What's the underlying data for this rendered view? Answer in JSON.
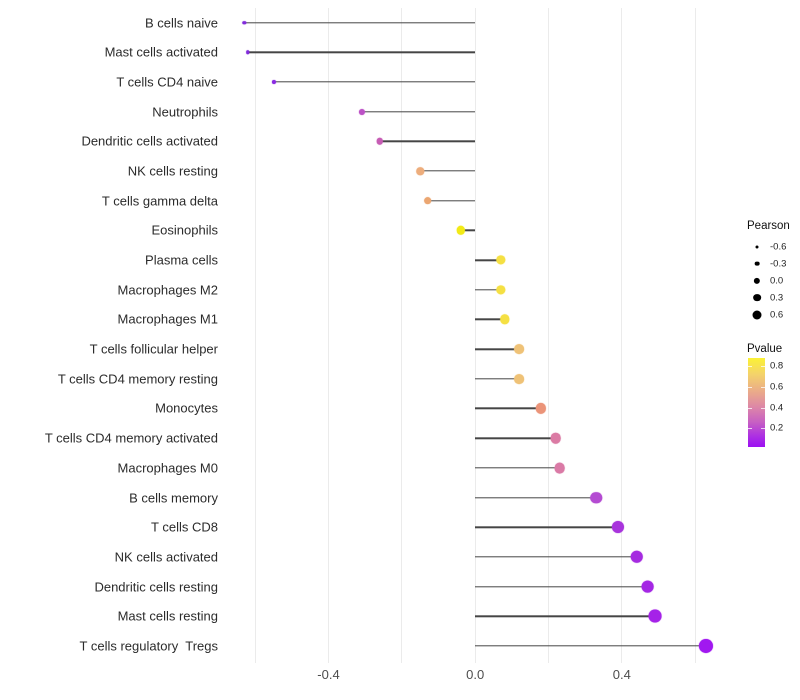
{
  "figure": {
    "background": "#ffffff",
    "gridline_color": "#ebebeb",
    "stem_color": "#454545",
    "axis_text_color": "#4d4d4d"
  },
  "chart_data": {
    "type": "scatter",
    "subtype": "lollipop",
    "title": "",
    "xlabel": "",
    "ylabel": "",
    "xlim": [
      -0.685,
      0.695
    ],
    "grid": true,
    "gridline_values": [
      -0.6,
      -0.4,
      -0.2,
      0.0,
      0.2,
      0.4,
      0.6
    ],
    "x_ticks": [
      {
        "label": "-0.4",
        "value": -0.4
      },
      {
        "label": "0.0",
        "value": 0.0
      },
      {
        "label": "0.4",
        "value": 0.4
      }
    ],
    "points": [
      {
        "label": "B cells naive",
        "pearson": -0.63,
        "pvalue": 0.1,
        "color": "#812bdb"
      },
      {
        "label": "Mast cells activated",
        "pearson": -0.62,
        "pvalue": 0.1,
        "color": "#812bdb"
      },
      {
        "label": "T cells CD4 naive",
        "pearson": -0.55,
        "pvalue": 0.13,
        "color": "#8a2be2"
      },
      {
        "label": "Neutrophils",
        "pearson": -0.31,
        "pvalue": 0.3,
        "color": "#bc52c6"
      },
      {
        "label": "Dendritic cells activated",
        "pearson": -0.26,
        "pvalue": 0.33,
        "color": "#c65cb4"
      },
      {
        "label": "NK cells resting",
        "pearson": -0.15,
        "pvalue": 0.6,
        "color": "#edad7c"
      },
      {
        "label": "T cells gamma delta",
        "pearson": -0.13,
        "pvalue": 0.58,
        "color": "#eba671"
      },
      {
        "label": "Eosinophils",
        "pearson": -0.04,
        "pvalue": 0.85,
        "color": "#f2ea16"
      },
      {
        "label": "Plasma cells",
        "pearson": 0.07,
        "pvalue": 0.78,
        "color": "#f5e043"
      },
      {
        "label": "Macrophages M2",
        "pearson": 0.07,
        "pvalue": 0.78,
        "color": "#f5e043"
      },
      {
        "label": "Macrophages M1",
        "pearson": 0.08,
        "pvalue": 0.78,
        "color": "#f5e043"
      },
      {
        "label": "T cells follicular helper",
        "pearson": 0.12,
        "pvalue": 0.66,
        "color": "#efc277"
      },
      {
        "label": "T cells CD4 memory resting",
        "pearson": 0.12,
        "pvalue": 0.66,
        "color": "#efc277"
      },
      {
        "label": "Monocytes",
        "pearson": 0.18,
        "pvalue": 0.52,
        "color": "#eb9479"
      },
      {
        "label": "T cells CD4 memory activated",
        "pearson": 0.22,
        "pvalue": 0.44,
        "color": "#db7ba4"
      },
      {
        "label": "Macrophages M0",
        "pearson": 0.23,
        "pvalue": 0.43,
        "color": "#da7aa6"
      },
      {
        "label": "B cells memory",
        "pearson": 0.33,
        "pvalue": 0.22,
        "color": "#b44bd2"
      },
      {
        "label": "T cells CD8",
        "pearson": 0.39,
        "pvalue": 0.16,
        "color": "#a834dc"
      },
      {
        "label": "NK cells activated",
        "pearson": 0.44,
        "pvalue": 0.13,
        "color": "#a52be0"
      },
      {
        "label": "Dendritic cells resting",
        "pearson": 0.47,
        "pvalue": 0.11,
        "color": "#a427e4"
      },
      {
        "label": "Mast cells resting",
        "pearson": 0.49,
        "pvalue": 0.1,
        "color": "#a522e8"
      },
      {
        "label": "T cells regulatory  Tregs",
        "pearson": 0.63,
        "pvalue": 0.05,
        "color": "#a118f0"
      }
    ],
    "legend_size": {
      "title": "Pearson",
      "entries": [
        {
          "label": "-0.6",
          "value": -0.6
        },
        {
          "label": "-0.3",
          "value": -0.3
        },
        {
          "label": "0.0",
          "value": 0.0
        },
        {
          "label": "0.3",
          "value": 0.3
        },
        {
          "label": "0.6",
          "value": 0.6
        }
      ],
      "dot_color": "#000000"
    },
    "legend_color": {
      "title": "Pvalue",
      "ticks": [
        {
          "label": "0.8",
          "value": 0.8
        },
        {
          "label": "0.6",
          "value": 0.6
        },
        {
          "label": "0.4",
          "value": 0.4
        },
        {
          "label": "0.2",
          "value": 0.2
        }
      ],
      "value_top": 0.88,
      "value_bottom": 0.02,
      "gradient_stops": [
        {
          "pos": 0,
          "color": "#fbf235"
        },
        {
          "pos": 18,
          "color": "#f4d36a"
        },
        {
          "pos": 38,
          "color": "#eaaa8a"
        },
        {
          "pos": 55,
          "color": "#dd87a7"
        },
        {
          "pos": 72,
          "color": "#c760c3"
        },
        {
          "pos": 88,
          "color": "#ac2fe3"
        },
        {
          "pos": 100,
          "color": "#9c10f2"
        }
      ]
    }
  }
}
